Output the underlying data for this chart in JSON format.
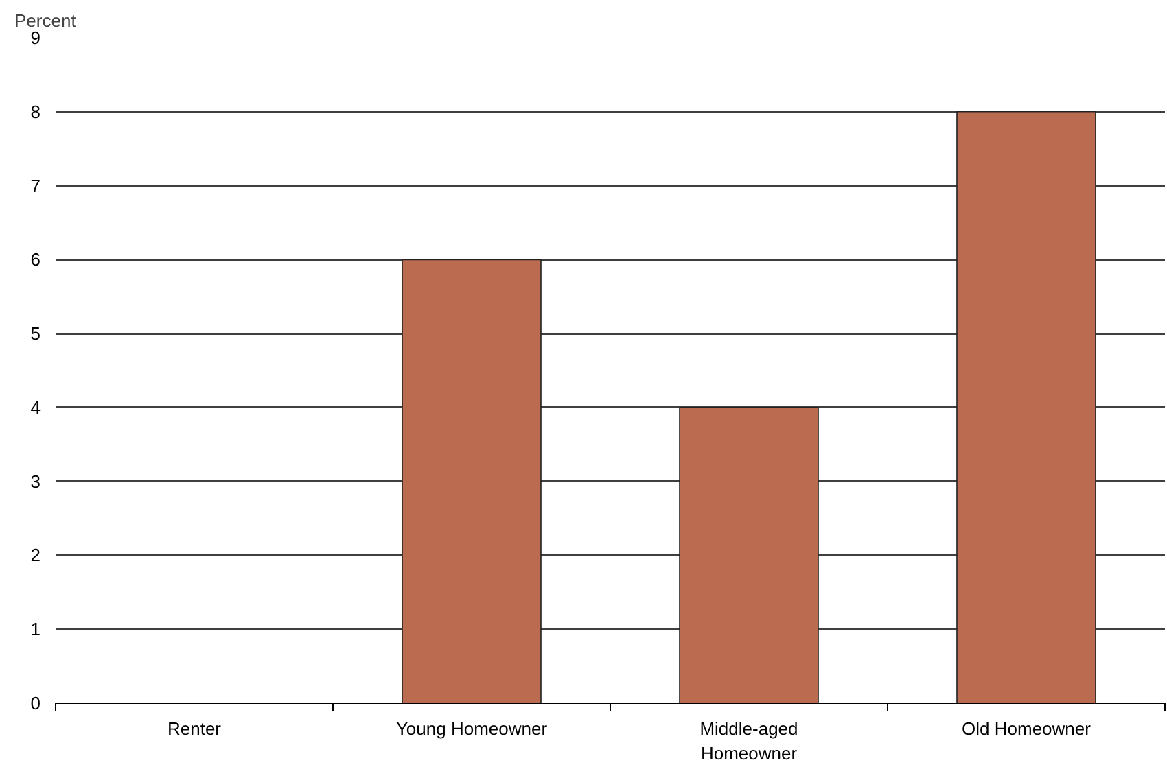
{
  "chart_data": {
    "type": "bar",
    "ylabel": "Percent",
    "categories": [
      "Renter",
      "Young Homeowner",
      "Middle-aged Homeowner",
      "Old Homeowner"
    ],
    "values": [
      0,
      6,
      4,
      8
    ],
    "color": "#bb6b50",
    "ylim": [
      0,
      9
    ],
    "yticks": [
      0,
      1,
      2,
      3,
      4,
      5,
      6,
      7,
      8,
      9
    ],
    "grid": "y"
  }
}
